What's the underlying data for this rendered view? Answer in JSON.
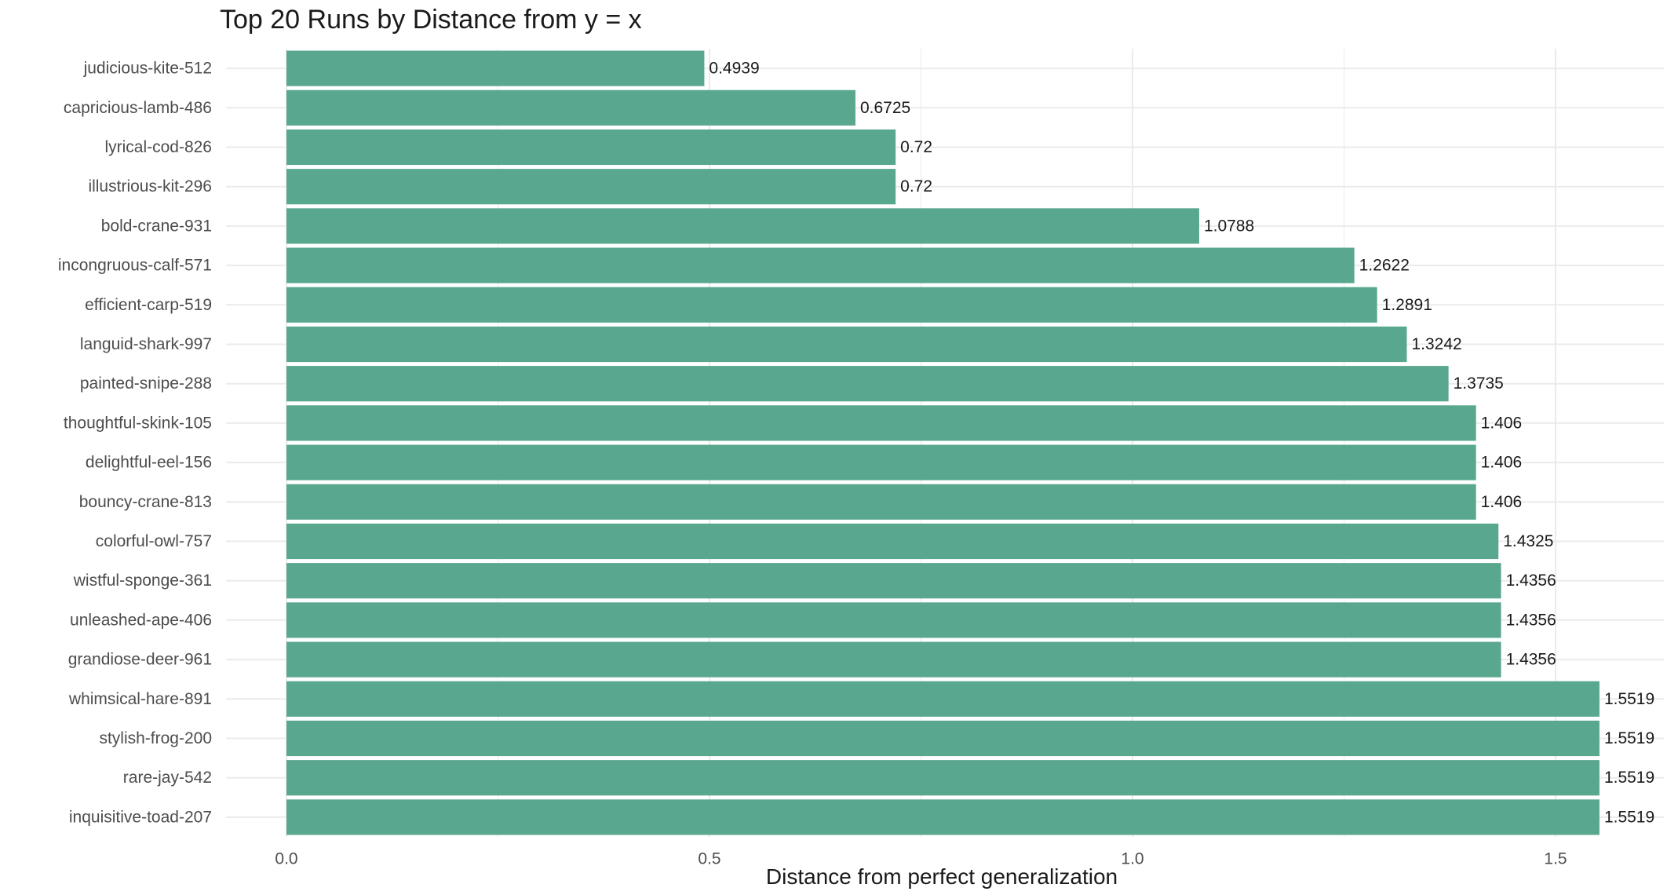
{
  "chart_data": {
    "type": "bar",
    "orientation": "horizontal",
    "title": "Top 20 Runs by Distance from y = x",
    "xlabel": "Distance from perfect generalization",
    "ylabel": "",
    "xlim": [
      0,
      1.62
    ],
    "xticks": [
      0,
      0.5,
      1.0,
      1.5
    ],
    "xtick_labels": [
      "0.0",
      "0.5",
      "1.0",
      "1.5"
    ],
    "grid": true,
    "bar_color": "#5aa78f",
    "grid_color": "#ebebeb",
    "categories": [
      "judicious-kite-512",
      "capricious-lamb-486",
      "lyrical-cod-826",
      "illustrious-kit-296",
      "bold-crane-931",
      "incongruous-calf-571",
      "efficient-carp-519",
      "languid-shark-997",
      "painted-snipe-288",
      "thoughtful-skink-105",
      "delightful-eel-156",
      "bouncy-crane-813",
      "colorful-owl-757",
      "wistful-sponge-361",
      "unleashed-ape-406",
      "grandiose-deer-961",
      "whimsical-hare-891",
      "stylish-frog-200",
      "rare-jay-542",
      "inquisitive-toad-207"
    ],
    "values": [
      0.4939,
      0.6725,
      0.72,
      0.72,
      1.0788,
      1.2622,
      1.2891,
      1.3242,
      1.3735,
      1.406,
      1.406,
      1.406,
      1.4325,
      1.4356,
      1.4356,
      1.4356,
      1.5519,
      1.5519,
      1.5519,
      1.5519
    ],
    "value_labels": [
      "0.4939",
      "0.6725",
      "0.72",
      "0.72",
      "1.0788",
      "1.2622",
      "1.2891",
      "1.3242",
      "1.3735",
      "1.406",
      "1.406",
      "1.406",
      "1.4325",
      "1.4356",
      "1.4356",
      "1.4356",
      "1.5519",
      "1.5519",
      "1.5519",
      "1.5519"
    ]
  }
}
